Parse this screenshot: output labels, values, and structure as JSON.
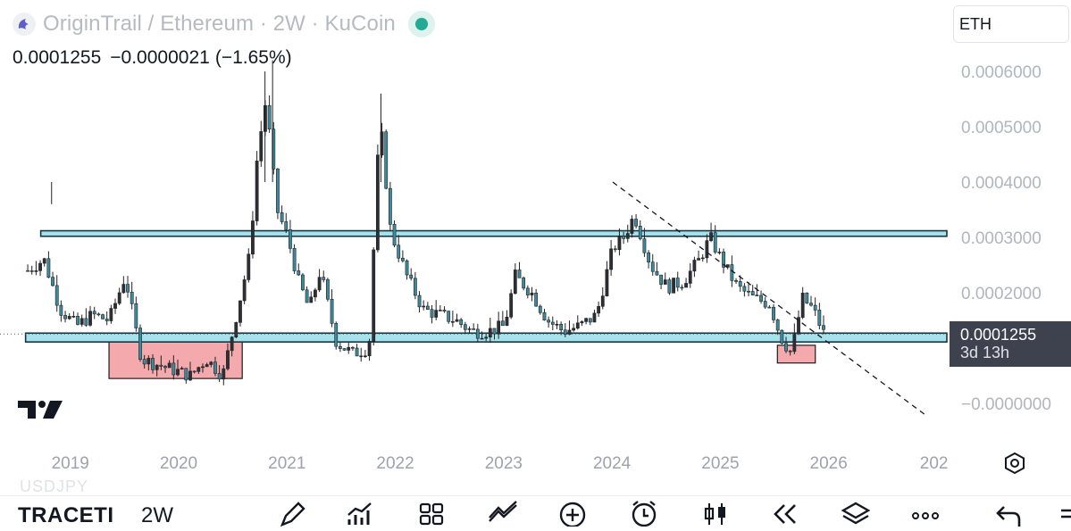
{
  "header": {
    "title": "OriginTrail / Ethereum · 2W · KuCoin",
    "last": "0.0001255",
    "change": "−0.0000021",
    "change_pct": "(−1.65%)"
  },
  "currency_select": {
    "value": "ETH"
  },
  "price_tag": {
    "price": "0.0001255",
    "countdown": "3d 13h"
  },
  "footer": {
    "symbol": "TRACETI",
    "timeframe": "2W",
    "ghost_symbol": "USDJPY"
  },
  "icons": [
    "symbol-logo-icon",
    "live-status-icon",
    "settings-icon",
    "tradingview-logo-icon",
    "pen-icon",
    "indicators-icon",
    "layouts-icon",
    "trend-icon",
    "add-icon",
    "alert-icon",
    "candles-icon",
    "replay-icon",
    "layers-icon",
    "more-icon",
    "undo-icon",
    "menu-icon"
  ],
  "colors": {
    "zone_fill": "#a6e2ec",
    "zone_border": "#1a3440",
    "box_fill": "#f4a9ad",
    "candle_up": "#2d2f36",
    "candle_down": "#3b8a9e",
    "price_tag": "#3e424e",
    "live": "#22ab94"
  },
  "chart_data": {
    "type": "candlestick",
    "title": "OriginTrail / Ethereum · 2W · KuCoin",
    "y_axis": {
      "ticks": [
        0.0006,
        0.0005,
        0.0004,
        0.0003,
        0.0002,
        0.0
      ],
      "tick_labels": [
        "0.0006000",
        "0.0005000",
        "0.0004000",
        "0.0003000",
        "0.0002000",
        "−0.0000000"
      ],
      "ylim": [
        -2e-05,
        0.00062
      ]
    },
    "x_axis": {
      "tick_labels": [
        "2019",
        "2020",
        "2021",
        "2022",
        "2023",
        "2024",
        "2025",
        "2026",
        "202"
      ],
      "xlim": [
        2018.55,
        2027.15
      ]
    },
    "series": {
      "x": [
        2018.6,
        2018.75,
        2018.9,
        2019.05,
        2019.2,
        2019.35,
        2019.5,
        2019.65,
        2019.8,
        2019.95,
        2020.1,
        2020.25,
        2020.4,
        2020.55,
        2020.65,
        2020.72,
        2020.8,
        2020.9,
        2021.0,
        2021.1,
        2021.2,
        2021.3,
        2021.45,
        2021.6,
        2021.75,
        2021.85,
        2021.95,
        2022.1,
        2022.25,
        2022.4,
        2022.55,
        2022.7,
        2022.85,
        2023.0,
        2023.1,
        2023.25,
        2023.4,
        2023.55,
        2023.7,
        2023.85,
        2024.0,
        2024.1,
        2024.2,
        2024.35,
        2024.5,
        2024.65,
        2024.8,
        2024.9,
        2025.0,
        2025.15,
        2025.3,
        2025.45,
        2025.55,
        2025.65,
        2025.75,
        2025.85,
        2025.95
      ],
      "values": [
        0.00024,
        0.00026,
        0.00017,
        0.00014,
        0.00016,
        0.00015,
        0.00023,
        8e-05,
        7e-05,
        6e-05,
        5e-05,
        8e-05,
        5e-05,
        0.00018,
        0.00027,
        0.00045,
        0.00055,
        0.00035,
        0.0003,
        0.00022,
        0.00017,
        0.00024,
        0.00011,
        9e-05,
        0.0001,
        0.00052,
        0.00031,
        0.00023,
        0.00017,
        0.00016,
        0.00015,
        0.00013,
        0.00013,
        0.00014,
        0.00023,
        0.0002,
        0.00015,
        0.00013,
        0.00014,
        0.00016,
        0.00028,
        0.0003,
        0.00034,
        0.00025,
        0.00021,
        0.00022,
        0.00026,
        0.0003,
        0.00026,
        0.00021,
        0.00019,
        0.00018,
        0.00012,
        9e-05,
        0.00019,
        0.00017,
        0.0001255
      ]
    },
    "annotations": {
      "resistance_zone": [
        0.000312,
        0.000302
      ],
      "support_zone": [
        0.000127,
        0.000111
      ],
      "accumulation_box_1": {
        "x": [
          2019.35,
          2020.58
        ],
        "y": [
          0.000112,
          4.5e-05
        ]
      },
      "accumulation_box_2": {
        "x": [
          2025.52,
          2025.87
        ],
        "y": [
          0.000105,
          7.3e-05
        ]
      },
      "dashed_trendline": {
        "from": [
          2024.0,
          0.0004
        ],
        "to": [
          2026.88,
          -2e-05
        ]
      },
      "last_price_line": 0.0001255
    },
    "grid": false,
    "legend": "none"
  }
}
